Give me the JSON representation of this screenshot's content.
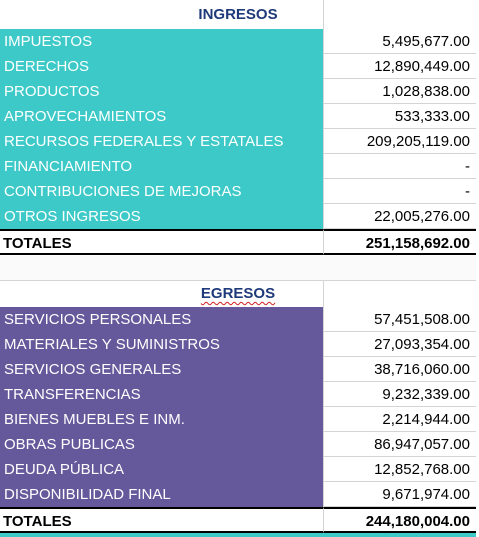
{
  "ingresos": {
    "title": "INGRESOS",
    "rows": [
      [
        "IMPUESTOS",
        "5,495,677.00"
      ],
      [
        "DERECHOS",
        "12,890,449.00"
      ],
      [
        "PRODUCTOS",
        "1,028,838.00"
      ],
      [
        "APROVECHAMIENTOS",
        "533,333.00"
      ],
      [
        "RECURSOS FEDERALES Y ESTATALES",
        "209,205,119.00"
      ],
      [
        "FINANCIAMIENTO",
        "-"
      ],
      [
        "CONTRIBUCIONES DE MEJORAS",
        "-"
      ],
      [
        "OTROS INGRESOS",
        "22,005,276.00"
      ]
    ],
    "total": [
      "TOTALES",
      "251,158,692.00"
    ]
  },
  "egresos": {
    "title": "EGRESOS",
    "rows": [
      [
        "SERVICIOS PERSONALES",
        "57,451,508.00"
      ],
      [
        "MATERIALES Y SUMINISTROS",
        "27,093,354.00"
      ],
      [
        "SERVICIOS GENERALES",
        "38,716,060.00"
      ],
      [
        "TRANSFERENCIAS",
        "9,232,339.00"
      ],
      [
        "BIENES MUEBLES E INM.",
        "2,214,944.00"
      ],
      [
        "OBRAS PUBLICAS",
        "86,947,057.00"
      ],
      [
        "DEUDA PÚBLICA",
        "12,852,768.00"
      ],
      [
        "DISPONIBILIDAD FINAL",
        "9,671,974.00"
      ]
    ],
    "total": [
      "TOTALES",
      "244,180,004.00"
    ]
  }
}
